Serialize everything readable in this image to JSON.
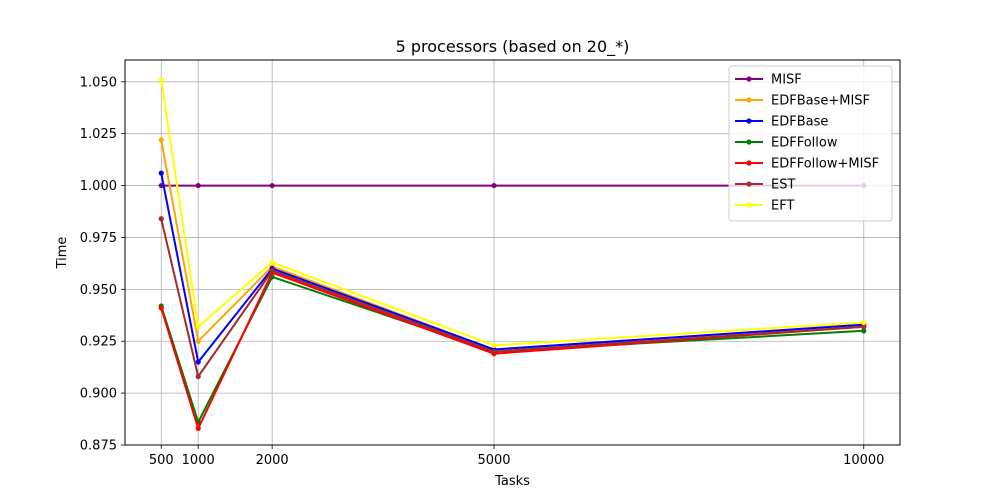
{
  "chart_data": {
    "type": "line",
    "title": "5 processors (based on 20_*)",
    "xlabel": "Tasks",
    "ylabel": "Time",
    "x": [
      500,
      1000,
      2000,
      5000,
      10000
    ],
    "xticks": [
      "500",
      "1000",
      "2000",
      "5000",
      "10000"
    ],
    "yticks": [
      "0.875",
      "0.900",
      "0.925",
      "0.950",
      "0.975",
      "1.000",
      "1.025",
      "1.050"
    ],
    "xlim": [
      10,
      10490
    ],
    "ylim": [
      0.875,
      1.0605
    ],
    "grid": true,
    "legend_position": "top-right",
    "series": [
      {
        "name": "MISF",
        "color": "#800080",
        "values": [
          1.0,
          1.0,
          1.0,
          1.0,
          1.0
        ]
      },
      {
        "name": "EDFBase+MISF",
        "color": "#ffa500",
        "values": [
          1.022,
          0.925,
          0.961,
          0.921,
          0.933
        ]
      },
      {
        "name": "EDFBase",
        "color": "#0000ff",
        "values": [
          1.006,
          0.915,
          0.96,
          0.921,
          0.933
        ]
      },
      {
        "name": "EDFFollow",
        "color": "#008000",
        "values": [
          0.942,
          0.886,
          0.956,
          0.92,
          0.93
        ]
      },
      {
        "name": "EDFFollow+MISF",
        "color": "#ff0000",
        "values": [
          0.941,
          0.883,
          0.958,
          0.919,
          0.932
        ]
      },
      {
        "name": "EST",
        "color": "#a52a2a",
        "values": [
          0.984,
          0.908,
          0.959,
          0.92,
          0.932
        ]
      },
      {
        "name": "EFT",
        "color": "#ffff00",
        "values": [
          1.051,
          0.932,
          0.963,
          0.923,
          0.934
        ]
      }
    ]
  }
}
